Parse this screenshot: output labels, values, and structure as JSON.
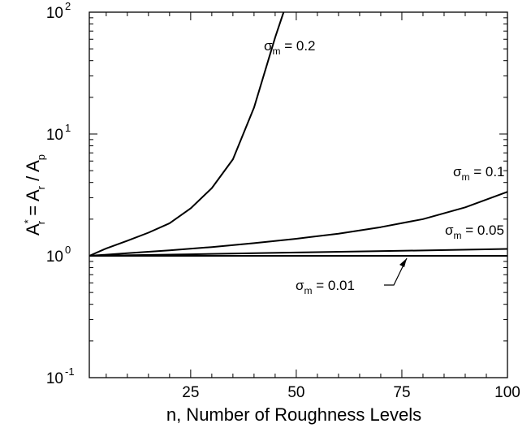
{
  "chart_data": {
    "type": "line",
    "title": "",
    "xlabel": "n, Number of Roughness Levels",
    "ylabel": {
      "A1": "A",
      "star": "*",
      "r1": "r",
      "eq": " = A",
      "r2": "r",
      "slash": " / A",
      "p": "p"
    },
    "xlim": [
      1,
      100
    ],
    "ylim": [
      0.1,
      100
    ],
    "yscale": "log",
    "grid": false,
    "legend": "none",
    "xticks": [
      {
        "value": 25,
        "label": "25"
      },
      {
        "value": 50,
        "label": "50"
      },
      {
        "value": 75,
        "label": "75"
      },
      {
        "value": 100,
        "label": "100"
      }
    ],
    "yticks": [
      {
        "value": 0.1,
        "base": "10",
        "exp": "-1"
      },
      {
        "value": 1,
        "base": "10",
        "exp": "0"
      },
      {
        "value": 10,
        "base": "10",
        "exp": "1"
      },
      {
        "value": 100,
        "base": "10",
        "exp": "2"
      }
    ],
    "series": [
      {
        "name": "σm = 0.2",
        "x": [
          1,
          5,
          10,
          15,
          20,
          25,
          30,
          35,
          40,
          45,
          47
        ],
        "y": [
          1.0,
          1.15,
          1.33,
          1.55,
          1.85,
          2.45,
          3.6,
          6.2,
          16.5,
          62,
          100
        ]
      },
      {
        "name": "σm = 0.1",
        "x": [
          1,
          10,
          20,
          30,
          40,
          50,
          60,
          70,
          80,
          90,
          100
        ],
        "y": [
          1.0,
          1.05,
          1.11,
          1.18,
          1.27,
          1.38,
          1.52,
          1.72,
          2.0,
          2.5,
          3.35
        ]
      },
      {
        "name": "σm = 0.05",
        "x": [
          1,
          25,
          50,
          75,
          100
        ],
        "y": [
          1.0,
          1.03,
          1.065,
          1.1,
          1.14
        ]
      },
      {
        "name": "σm = 0.01",
        "x": [
          1,
          100
        ],
        "y": [
          1.0,
          1.0
        ]
      }
    ],
    "annotations": [
      {
        "sigma": "σ",
        "sub": "m",
        "value": " = 0.2"
      },
      {
        "sigma": "σ",
        "sub": "m",
        "value": " = 0.1"
      },
      {
        "sigma": "σ",
        "sub": "m",
        "value": " = 0.05"
      },
      {
        "sigma": "σ",
        "sub": "m",
        "value": " = 0.01"
      }
    ]
  }
}
